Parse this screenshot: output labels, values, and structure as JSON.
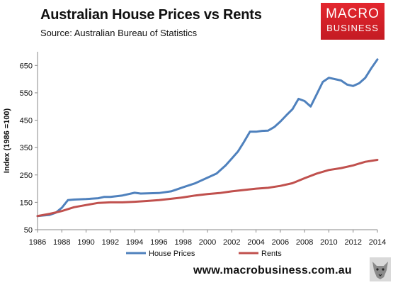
{
  "title": "Australian House Prices vs Rents",
  "subtitle": "Source: Australian Bureau of Statistics",
  "logo": {
    "line1": "MACRO",
    "line2": "BUSINESS"
  },
  "footer": {
    "url": "www.macrobusiness.com.au",
    "icon": "wolf-icon"
  },
  "chart_data": {
    "type": "line",
    "ylabel": "Index (1986 =100)",
    "xlabel": "",
    "xlim": [
      1986,
      2014
    ],
    "ylim": [
      50,
      700
    ],
    "x_ticks": [
      1986,
      1988,
      1990,
      1992,
      1994,
      1996,
      1998,
      2000,
      2002,
      2004,
      2006,
      2008,
      2010,
      2012,
      2014
    ],
    "y_ticks": [
      50,
      150,
      250,
      350,
      450,
      550,
      650
    ],
    "grid": false,
    "legend": "bottom",
    "series": [
      {
        "name": "House Prices",
        "color": "#4f81bd",
        "x": [
          1986,
          1986.5,
          1987,
          1987.5,
          1988,
          1988.5,
          1989,
          1990,
          1991,
          1991.5,
          1992,
          1993,
          1994,
          1994.5,
          1996,
          1997,
          1998,
          1999,
          2000,
          2000.75,
          2001.5,
          2002,
          2002.5,
          2003,
          2003.5,
          2004,
          2004.5,
          2005,
          2005.5,
          2006,
          2006.5,
          2007,
          2007.5,
          2008,
          2008.5,
          2009,
          2009.5,
          2010,
          2010.5,
          2011,
          2011.5,
          2012,
          2012.5,
          2013,
          2013.5,
          2014
        ],
        "values": [
          100,
          102,
          104,
          112,
          130,
          158,
          160,
          162,
          165,
          170,
          170,
          175,
          185,
          182,
          184,
          190,
          205,
          220,
          240,
          255,
          285,
          310,
          335,
          370,
          408,
          408,
          411,
          412,
          425,
          445,
          468,
          490,
          528,
          520,
          500,
          545,
          590,
          605,
          600,
          595,
          580,
          575,
          585,
          605,
          640,
          672
        ]
      },
      {
        "name": "Rents",
        "color": "#c0504d",
        "x": [
          1986,
          1987,
          1988,
          1989,
          1990,
          1991,
          1992,
          1993,
          1994,
          1995,
          1996,
          1997,
          1998,
          1999,
          2000,
          2001,
          2002,
          2003,
          2004,
          2005,
          2006,
          2007,
          2008,
          2009,
          2010,
          2011,
          2012,
          2013,
          2014
        ],
        "values": [
          100,
          108,
          118,
          132,
          140,
          148,
          150,
          150,
          152,
          155,
          158,
          163,
          168,
          175,
          180,
          184,
          190,
          195,
          200,
          203,
          210,
          220,
          238,
          255,
          268,
          275,
          285,
          298,
          305
        ]
      }
    ]
  }
}
